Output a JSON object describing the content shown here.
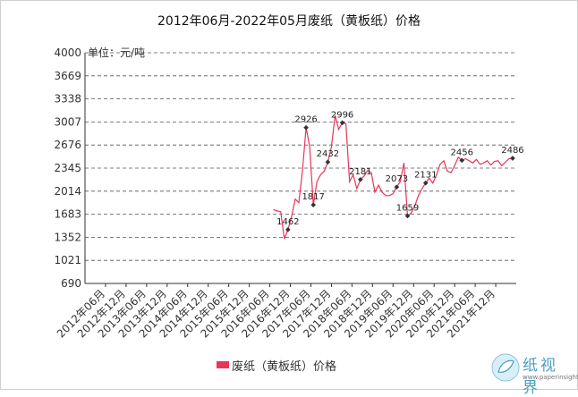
{
  "title": "2012年06月-2022年05月废纸（黄板纸）价格",
  "watermark": {
    "text": "纸视界",
    "url": "www.paperinsight.net",
    "icon": "paper-leaf-logo"
  },
  "colors": {
    "line": "#e8355a",
    "grid": "#555555",
    "axis": "#333333",
    "text": "#333333"
  },
  "chart_data": {
    "type": "line",
    "title": "2012年06月-2022年05月废纸（黄板纸）价格",
    "ylabel": "单位：元/吨",
    "ylim": [
      690,
      4000
    ],
    "yticks": [
      690,
      1021,
      1352,
      1683,
      2014,
      2345,
      2676,
      3007,
      3338,
      3669,
      4000
    ],
    "grid": true,
    "legend_position": "bottom",
    "xtick_labels": [
      "2012年06月",
      "2012年12月",
      "2013年06月",
      "2013年12月",
      "2014年06月",
      "2014年12月",
      "2015年06月",
      "2015年12月",
      "2016年06月",
      "2016年12月",
      "2017年06月",
      "2017年12月",
      "2018年06月",
      "2018年12月",
      "2019年06月",
      "2019年12月",
      "2020年06月",
      "2020年12月",
      "2021年06月",
      "2021年12月"
    ],
    "series": [
      {
        "name": "废纸（黄板纸）价格",
        "points": [
          [
            "2016-10",
            1750
          ],
          [
            "2016-11",
            1730
          ],
          [
            "2016-12",
            1720
          ],
          [
            "2017-01",
            1330
          ],
          [
            "2017-02",
            1462
          ],
          [
            "2017-03",
            1650
          ],
          [
            "2017-04",
            1900
          ],
          [
            "2017-05",
            1850
          ],
          [
            "2017-06",
            2300
          ],
          [
            "2017-07",
            2926
          ],
          [
            "2017-08",
            2650
          ],
          [
            "2017-09",
            1817
          ],
          [
            "2017-10",
            2150
          ],
          [
            "2017-11",
            2250
          ],
          [
            "2017-12",
            2300
          ],
          [
            "2018-01",
            2432
          ],
          [
            "2018-02",
            2650
          ],
          [
            "2018-03",
            3100
          ],
          [
            "2018-04",
            2900
          ],
          [
            "2018-05",
            2996
          ],
          [
            "2018-06",
            2980
          ],
          [
            "2018-07",
            2150
          ],
          [
            "2018-08",
            2250
          ],
          [
            "2018-09",
            2050
          ],
          [
            "2018-10",
            2181
          ],
          [
            "2018-11",
            2230
          ],
          [
            "2018-12",
            2310
          ],
          [
            "2019-01",
            2280
          ],
          [
            "2019-02",
            2000
          ],
          [
            "2019-03",
            2100
          ],
          [
            "2019-04",
            2000
          ],
          [
            "2019-05",
            1950
          ],
          [
            "2019-06",
            1950
          ],
          [
            "2019-07",
            1980
          ],
          [
            "2019-08",
            2073
          ],
          [
            "2019-09",
            2150
          ],
          [
            "2019-10",
            2420
          ],
          [
            "2019-11",
            1659
          ],
          [
            "2019-12",
            1700
          ],
          [
            "2020-01",
            1800
          ],
          [
            "2020-02",
            1950
          ],
          [
            "2020-03",
            2050
          ],
          [
            "2020-04",
            2131
          ],
          [
            "2020-05",
            2200
          ],
          [
            "2020-06",
            2130
          ],
          [
            "2020-07",
            2250
          ],
          [
            "2020-08",
            2400
          ],
          [
            "2020-09",
            2450
          ],
          [
            "2020-10",
            2300
          ],
          [
            "2020-11",
            2280
          ],
          [
            "2020-12",
            2380
          ],
          [
            "2021-01",
            2500
          ],
          [
            "2021-02",
            2456
          ],
          [
            "2021-03",
            2480
          ],
          [
            "2021-04",
            2450
          ],
          [
            "2021-05",
            2420
          ],
          [
            "2021-06",
            2470
          ],
          [
            "2021-07",
            2400
          ],
          [
            "2021-08",
            2420
          ],
          [
            "2021-09",
            2450
          ],
          [
            "2021-10",
            2390
          ],
          [
            "2021-11",
            2440
          ],
          [
            "2021-12",
            2450
          ],
          [
            "2022-01",
            2380
          ],
          [
            "2022-02",
            2430
          ],
          [
            "2022-03",
            2480
          ],
          [
            "2022-04",
            2486
          ]
        ]
      }
    ],
    "labeled_points": [
      {
        "x": "2017-02",
        "label": "1462"
      },
      {
        "x": "2017-07",
        "label": "2926"
      },
      {
        "x": "2017-09",
        "label": "1817"
      },
      {
        "x": "2018-01",
        "label": "2432"
      },
      {
        "x": "2018-05",
        "label": "2996"
      },
      {
        "x": "2018-10",
        "label": "2181"
      },
      {
        "x": "2019-08",
        "label": "2073"
      },
      {
        "x": "2019-11",
        "label": "1659"
      },
      {
        "x": "2020-04",
        "label": "2131"
      },
      {
        "x": "2021-02",
        "label": "2456"
      },
      {
        "x": "2022-04",
        "label": "2486"
      }
    ]
  }
}
